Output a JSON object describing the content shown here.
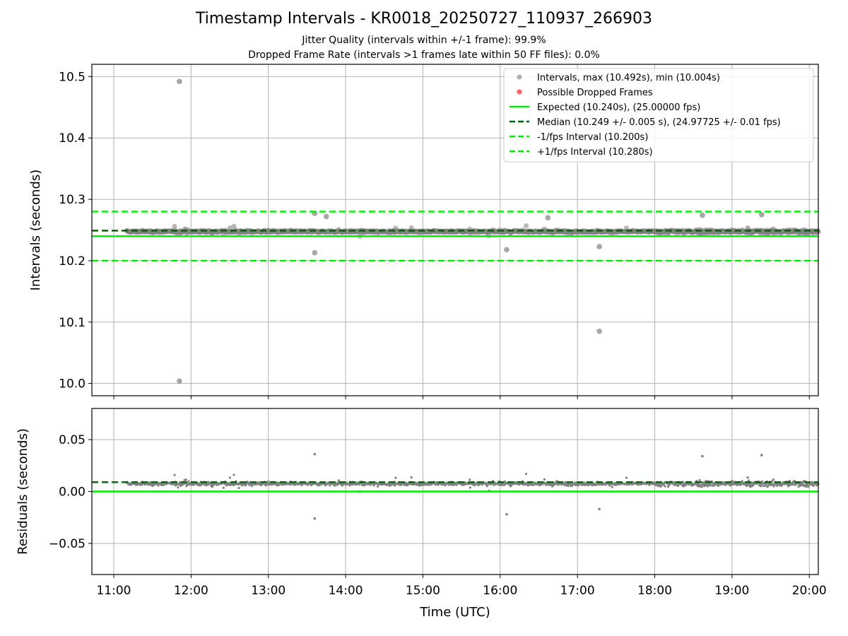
{
  "title": "Timestamp Intervals - KR0018_20250727_110937_266903",
  "subtitles": [
    "Jitter Quality (intervals within +/-1 frame): 99.9%",
    "Dropped Frame Rate (intervals >1 frames late within 50 FF files): 0.0%"
  ],
  "colors": {
    "points": "#808080",
    "dropped": "#ff6060",
    "expected": "#00ee00",
    "median": "#006400",
    "bounds": "#00ee00",
    "grid": "#b0b0b0"
  },
  "chart_data": [
    {
      "type": "scatter",
      "panel": "intervals",
      "ylabel": "Intervals (seconds)",
      "ylim": [
        9.98,
        10.52
      ],
      "yticks": [
        10.0,
        10.1,
        10.2,
        10.3,
        10.4,
        10.5
      ],
      "ytick_labels": [
        "10.0",
        "10.1",
        "10.2",
        "10.3",
        "10.4",
        "10.5"
      ],
      "xlim": [
        "10:43",
        "20:07"
      ],
      "grid": true,
      "legend_position": "top-right",
      "legend": [
        "Intervals, max (10.492s), min (10.004s)",
        "Possible Dropped Frames",
        "Expected (10.240s), (25.00000 fps)",
        "Median (10.249 +/- 0.005 s), (24.97725 +/- 0.01 fps)",
        "-1/fps Interval (10.200s)",
        "+1/fps Interval (10.280s)"
      ],
      "reference_lines": {
        "expected": 10.24,
        "median": 10.249,
        "minus_1_fps": 10.2,
        "plus_1_fps": 10.28
      },
      "data_range": {
        "start": "11:10",
        "end": "20:07",
        "typical_min": 10.24,
        "typical_max": 10.255
      },
      "outliers": [
        {
          "x": "11:51",
          "y": 10.492
        },
        {
          "x": "11:51",
          "y": 10.004
        },
        {
          "x": "17:17",
          "y": 10.085
        },
        {
          "x": "13:36",
          "y": 10.213
        },
        {
          "x": "13:36",
          "y": 10.277
        },
        {
          "x": "16:05",
          "y": 10.218
        },
        {
          "x": "17:17",
          "y": 10.223
        },
        {
          "x": "18:37",
          "y": 10.274
        },
        {
          "x": "19:23",
          "y": 10.275
        },
        {
          "x": "13:45",
          "y": 10.272
        },
        {
          "x": "16:37",
          "y": 10.27
        }
      ],
      "dropped_frames": []
    },
    {
      "type": "scatter",
      "panel": "residuals",
      "ylabel": "Residuals (seconds)",
      "xlabel": "Time (UTC)",
      "ylim": [
        -0.08,
        0.08
      ],
      "yticks": [
        -0.05,
        0.0,
        0.05
      ],
      "ytick_labels": [
        "−0.05",
        "0.00",
        "0.05"
      ],
      "xticks": [
        "11:00",
        "12:00",
        "13:00",
        "14:00",
        "15:00",
        "16:00",
        "17:00",
        "18:00",
        "19:00",
        "20:00"
      ],
      "xlim": [
        "10:43",
        "20:07"
      ],
      "grid": true,
      "reference_lines": {
        "zero": 0.0,
        "median": 0.009
      },
      "data_range": {
        "start": "11:10",
        "end": "20:07",
        "typical_min": -0.012,
        "typical_max": 0.025
      },
      "outliers": [
        {
          "x": "13:36",
          "y": 0.036
        },
        {
          "x": "13:36",
          "y": -0.026
        },
        {
          "x": "19:23",
          "y": 0.035
        },
        {
          "x": "18:37",
          "y": 0.034
        },
        {
          "x": "16:05",
          "y": -0.022
        },
        {
          "x": "17:17",
          "y": -0.017
        }
      ]
    }
  ]
}
